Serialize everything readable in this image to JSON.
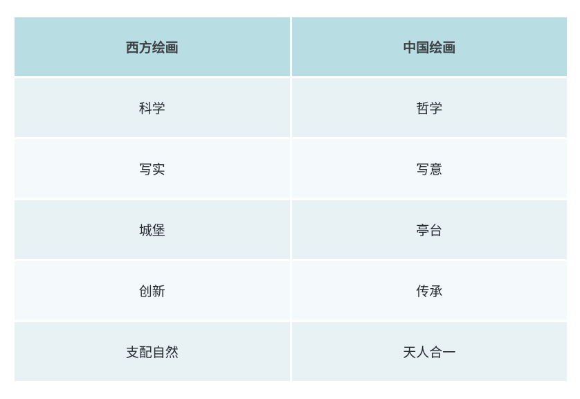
{
  "table": {
    "headers": [
      {
        "label": "西方绘画"
      },
      {
        "label": "中国绘画"
      }
    ],
    "rows": [
      {
        "west": "科学",
        "china": "哲学"
      },
      {
        "west": "写实",
        "china": "写意"
      },
      {
        "west": "城堡",
        "china": "亭台"
      },
      {
        "west": "创新",
        "china": "传承"
      },
      {
        "west": "支配自然",
        "china": "天人合一"
      }
    ],
    "colors": {
      "header_bg": "#b8dde2",
      "row_odd_bg": "#e8f2f5",
      "row_even_bg": "#f4f9fb",
      "header_text": "#3a3f44",
      "body_text": "#24292e",
      "page_bg": "#ffffff"
    }
  }
}
